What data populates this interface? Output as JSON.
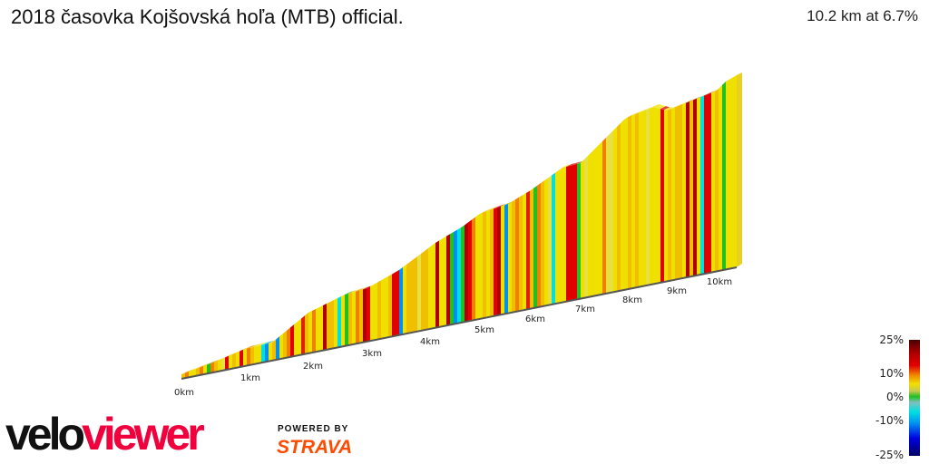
{
  "header": {
    "title": "2018 časovka Kojšovská hoľa (MTB) official.",
    "summary": "10.2 km at 6.7%"
  },
  "chart_data": {
    "type": "area",
    "title": "2018 časovka Kojšovská hoľa (MTB) official.",
    "x_ticks": [
      "0km",
      "1km",
      "2km",
      "3km",
      "4km",
      "5km",
      "6km",
      "7km",
      "8km",
      "9km",
      "10km"
    ],
    "distance_km": 10.2,
    "avg_gradient_pct": 6.7,
    "legend": {
      "labels": [
        "25%",
        "10%",
        "0%",
        "-10%",
        "-25%"
      ],
      "colors": [
        "#4a0000",
        "#e00000",
        "#f0e000",
        "#20c020",
        "#00e0e0",
        "#0000e0",
        "#000060"
      ]
    }
  },
  "branding": {
    "logo_velo": "velo",
    "logo_viewer": "viewer",
    "powered_by": "POWERED BY",
    "strava": "STRAVA"
  }
}
